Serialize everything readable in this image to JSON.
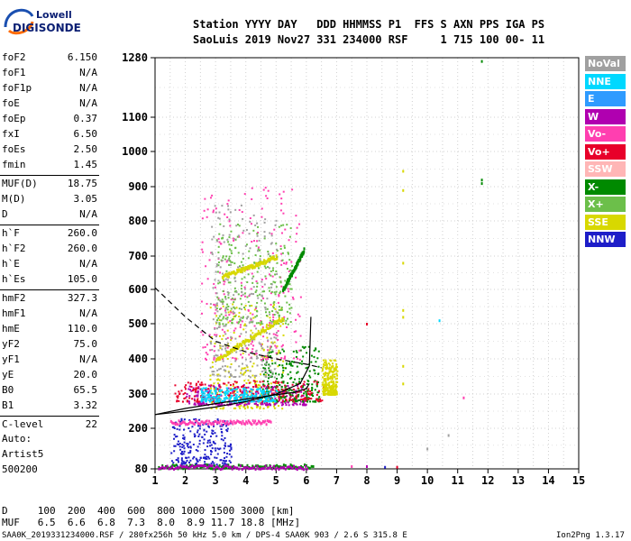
{
  "logo": {
    "top": "Lowell",
    "bottom": "DIGISONDE"
  },
  "header": {
    "line1": "Station YYYY DAY   DDD HHMMSS P1  FFS S AXN PPS IGA PS",
    "line2": "SaoLuis 2019 Nov27 331 234000 RSF     1 715 100 00- 11"
  },
  "params": [
    {
      "name": "foF2",
      "value": "6.150"
    },
    {
      "name": "foF1",
      "value": "N/A"
    },
    {
      "name": "foF1p",
      "value": "N/A"
    },
    {
      "name": "foE",
      "value": "N/A"
    },
    {
      "name": "foEp",
      "value": "0.37"
    },
    {
      "name": "fxI",
      "value": "6.50"
    },
    {
      "name": "foEs",
      "value": "2.50"
    },
    {
      "name": "fmin",
      "value": "1.45"
    },
    {
      "name": "MUF(D)",
      "value": "18.75"
    },
    {
      "name": "M(D)",
      "value": "3.05"
    },
    {
      "name": "D",
      "value": "N/A"
    },
    {
      "name": "h`F",
      "value": "260.0"
    },
    {
      "name": "h`F2",
      "value": "260.0"
    },
    {
      "name": "h`E",
      "value": "N/A"
    },
    {
      "name": "h`Es",
      "value": "105.0"
    },
    {
      "name": "hmF2",
      "value": "327.3"
    },
    {
      "name": "hmF1",
      "value": "N/A"
    },
    {
      "name": "hmE",
      "value": "110.0"
    },
    {
      "name": "yF2",
      "value": "75.0"
    },
    {
      "name": "yF1",
      "value": "N/A"
    },
    {
      "name": "yE",
      "value": "20.0"
    },
    {
      "name": "B0",
      "value": "65.5"
    },
    {
      "name": "B1",
      "value": "3.32"
    },
    {
      "name": "C-level",
      "value": "22"
    }
  ],
  "auto": {
    "l1": "Auto:",
    "l2": "Artist5",
    "l3": "500200"
  },
  "legend": [
    {
      "label": "NoVal",
      "color": "#a0a0a0"
    },
    {
      "label": "NNE",
      "color": "#00d8ff"
    },
    {
      "label": "E",
      "color": "#2f9bff"
    },
    {
      "label": "W",
      "color": "#b000b0"
    },
    {
      "label": "Vo-",
      "color": "#ff3fb0"
    },
    {
      "label": "Vo+",
      "color": "#e8002a"
    },
    {
      "label": "SSW",
      "color": "#ffb6b6"
    },
    {
      "label": "X-",
      "color": "#008a00"
    },
    {
      "label": "X+",
      "color": "#6cbf4a"
    },
    {
      "label": "SSE",
      "color": "#d8d800"
    },
    {
      "label": "NNW",
      "color": "#1e1ec8"
    }
  ],
  "footer": {
    "d_row": "D     100  200  400  600  800 1000 1500 3000 [km]",
    "muf_row": "MUF   6.5  6.6  6.8  7.3  8.0  8.9 11.7 18.8 [MHz]",
    "file": "SAA0K_2019331234000.RSF / 280fx256h 50 kHz 5.0 km / DPS-4 SAA0K 903 / 2.6 S 315.8 E",
    "version": "Ion2Png 1.3.17"
  },
  "chart_data": {
    "type": "scatter",
    "title": "",
    "xlabel": "",
    "ylabel": "",
    "xlim": [
      1,
      15
    ],
    "x_ticks": [
      1,
      2,
      3,
      4,
      5,
      6,
      7,
      8,
      9,
      10,
      11,
      12,
      13,
      14,
      15
    ],
    "y_ticks": [
      80,
      200,
      300,
      400,
      500,
      600,
      700,
      800,
      900,
      1000,
      1100,
      1280
    ],
    "y_scale": "nonlinear",
    "grid": true,
    "legend": "right",
    "curves": [
      {
        "name": "",
        "style": "solid",
        "x": [
          1.0,
          2.0,
          3.0,
          4.0,
          5.0,
          5.6,
          6.0,
          6.1
        ],
        "y": [
          240,
          258,
          272,
          285,
          298,
          305,
          315,
          330
        ]
      },
      {
        "name": "",
        "style": "solid",
        "x": [
          1.0,
          2.0,
          3.0,
          4.0,
          5.0,
          5.8,
          6.1,
          6.15
        ],
        "y": [
          240,
          250,
          262,
          278,
          300,
          330,
          380,
          520
        ]
      },
      {
        "name": "",
        "style": "dashed",
        "x": [
          1.0,
          2.0,
          3.0,
          4.0,
          5.0,
          6.0,
          6.5
        ],
        "y": [
          605,
          520,
          450,
          420,
          400,
          385,
          375
        ]
      }
    ],
    "clusters": [
      {
        "color": "#d8d800",
        "xmin": 2.8,
        "xmax": 5.3,
        "ymin": 260,
        "ymax": 560
      },
      {
        "color": "#b000b0",
        "xmin": 2.0,
        "xmax": 6.0,
        "ymin": 270,
        "ymax": 330
      },
      {
        "color": "#008a00",
        "xmin": 4.5,
        "xmax": 6.4,
        "ymin": 280,
        "ymax": 440
      },
      {
        "color": "#ff3fb0",
        "xmin": 2.5,
        "xmax": 5.8,
        "ymin": 400,
        "ymax": 900
      },
      {
        "color": "#e8002a",
        "xmin": 1.6,
        "xmax": 6.6,
        "ymin": 280,
        "ymax": 340
      },
      {
        "color": "#6cbf4a",
        "xmin": 3.0,
        "xmax": 5.5,
        "ymin": 500,
        "ymax": 800
      },
      {
        "color": "#1e1ec8",
        "xmin": 1.5,
        "xmax": 3.5,
        "ymin": 90,
        "ymax": 230
      },
      {
        "color": "#00d8ff",
        "xmin": 2.5,
        "xmax": 5.0,
        "ymin": 280,
        "ymax": 320
      },
      {
        "color": "#d8d800",
        "xmin": 6.5,
        "xmax": 7.0,
        "ymin": 300,
        "ymax": 400
      },
      {
        "color": "#a0a0a0",
        "xmin": 2.8,
        "xmax": 5.0,
        "ymin": 350,
        "ymax": 850
      }
    ],
    "traces": [
      {
        "color": "#d8d800",
        "x1": 3.0,
        "y1": 400,
        "x2": 5.2,
        "y2": 520
      },
      {
        "color": "#d8d800",
        "x1": 3.2,
        "y1": 640,
        "x2": 5.0,
        "y2": 700
      },
      {
        "color": "#008a00",
        "x1": 5.2,
        "y1": 600,
        "x2": 5.9,
        "y2": 720
      },
      {
        "color": "#008a00",
        "x1": 1.1,
        "y1": 90,
        "x2": 6.2,
        "y2": 90
      },
      {
        "color": "#b000b0",
        "x1": 1.1,
        "y1": 88,
        "x2": 6.0,
        "y2": 88
      },
      {
        "color": "#ff3fb0",
        "x1": 1.5,
        "y1": 220,
        "x2": 4.8,
        "y2": 220
      }
    ],
    "isolated": [
      {
        "color": "#d8d800",
        "x": 9.2,
        "y": 945
      },
      {
        "color": "#d8d800",
        "x": 9.2,
        "y": 890
      },
      {
        "color": "#d8d800",
        "x": 9.2,
        "y": 680
      },
      {
        "color": "#d8d800",
        "x": 9.2,
        "y": 540
      },
      {
        "color": "#d8d800",
        "x": 9.2,
        "y": 520
      },
      {
        "color": "#d8d800",
        "x": 9.2,
        "y": 380
      },
      {
        "color": "#d8d800",
        "x": 9.2,
        "y": 330
      },
      {
        "color": "#008a00",
        "x": 11.8,
        "y": 920
      },
      {
        "color": "#008a00",
        "x": 11.8,
        "y": 910
      },
      {
        "color": "#008a00",
        "x": 11.8,
        "y": 1270
      },
      {
        "color": "#00d8ff",
        "x": 10.4,
        "y": 510
      },
      {
        "color": "#ff3fb0",
        "x": 11.2,
        "y": 290
      },
      {
        "color": "#e8002a",
        "x": 9.0,
        "y": 86
      },
      {
        "color": "#b000b0",
        "x": 8.0,
        "y": 88
      },
      {
        "color": "#ff3fb0",
        "x": 7.5,
        "y": 88
      },
      {
        "color": "#1e1ec8",
        "x": 8.6,
        "y": 86
      },
      {
        "color": "#a0a0a0",
        "x": 10.7,
        "y": 180
      },
      {
        "color": "#e8002a",
        "x": 8.0,
        "y": 500
      },
      {
        "color": "#a0a0a0",
        "x": 10.0,
        "y": 140
      }
    ]
  }
}
